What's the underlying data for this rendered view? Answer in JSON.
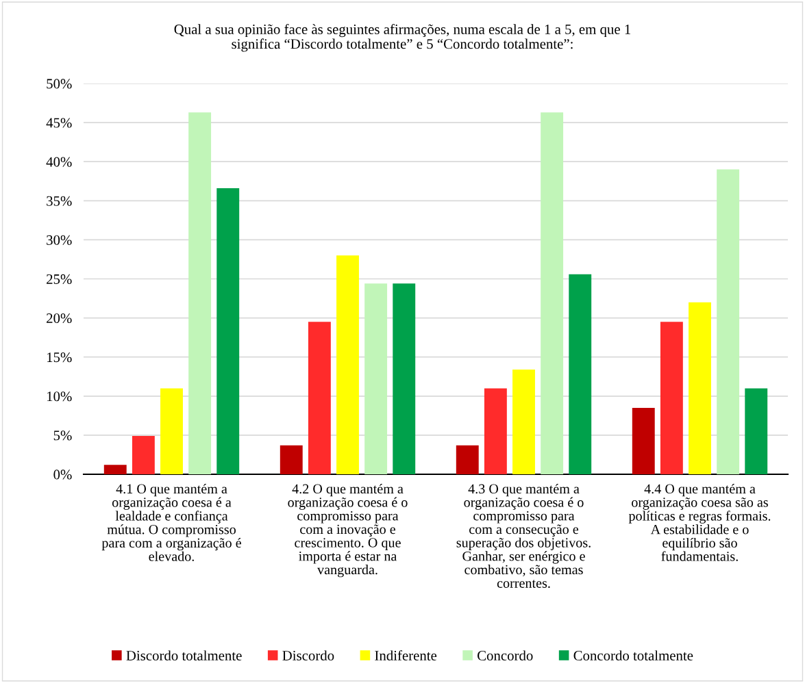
{
  "chart_data": {
    "type": "bar",
    "title": "Qual a sua opinião face às seguintes afirmações, numa escala de 1 a 5, em que 1\nsignifica “Discordo totalmente” e 5 “Concordo totalmente”:",
    "categories": [
      "4.1 O que mantém a\norganização coesa é a\nlealdade e confiança\nmútua. O compromisso\npara com a organização é\nelevado.",
      "4.2 O que mantém a\norganização coesa é o\ncompromisso para\ncom a inovação e\ncrescimento. O que\nimporta é estar na\nvanguarda.",
      "4.3 O que mantém a\norganização coesa é o\ncompromisso para\ncom a consecução e\nsuperação dos objetivos.\nGanhar, ser enérgico e\ncombativo, são temas\ncorrentes.",
      "4.4 O que mantém a\norganização coesa são as\npolíticas e regras formais.\nA estabilidade e o\nequilíbrio são\nfundamentais."
    ],
    "series": [
      {
        "name": "Discordo totalmente",
        "color": "#c00000",
        "values": [
          1.2,
          3.7,
          3.7,
          8.5
        ]
      },
      {
        "name": "Discordo",
        "color": "#ff2b2b",
        "values": [
          4.9,
          19.5,
          11.0,
          19.5
        ]
      },
      {
        "name": "Indiferente",
        "color": "#ffff00",
        "values": [
          11.0,
          28.0,
          13.4,
          22.0
        ]
      },
      {
        "name": "Concordo",
        "color": "#c1f5b8",
        "values": [
          46.3,
          24.4,
          46.3,
          39.0
        ]
      },
      {
        "name": "Concordo totalmente",
        "color": "#00a14b",
        "values": [
          36.6,
          24.4,
          25.6,
          11.0
        ]
      }
    ],
    "ylim": [
      0,
      50
    ],
    "yticks": [
      {
        "value": 0,
        "label": "0%"
      },
      {
        "value": 5,
        "label": "5%"
      },
      {
        "value": 10,
        "label": "10%"
      },
      {
        "value": 15,
        "label": "15%"
      },
      {
        "value": 20,
        "label": "20%"
      },
      {
        "value": 25,
        "label": "25%"
      },
      {
        "value": 30,
        "label": "30%"
      },
      {
        "value": 35,
        "label": "35%"
      },
      {
        "value": 40,
        "label": "40%"
      },
      {
        "value": 45,
        "label": "45%"
      },
      {
        "value": 50,
        "label": "50%"
      }
    ],
    "grid": "y",
    "legend": "bottom"
  }
}
